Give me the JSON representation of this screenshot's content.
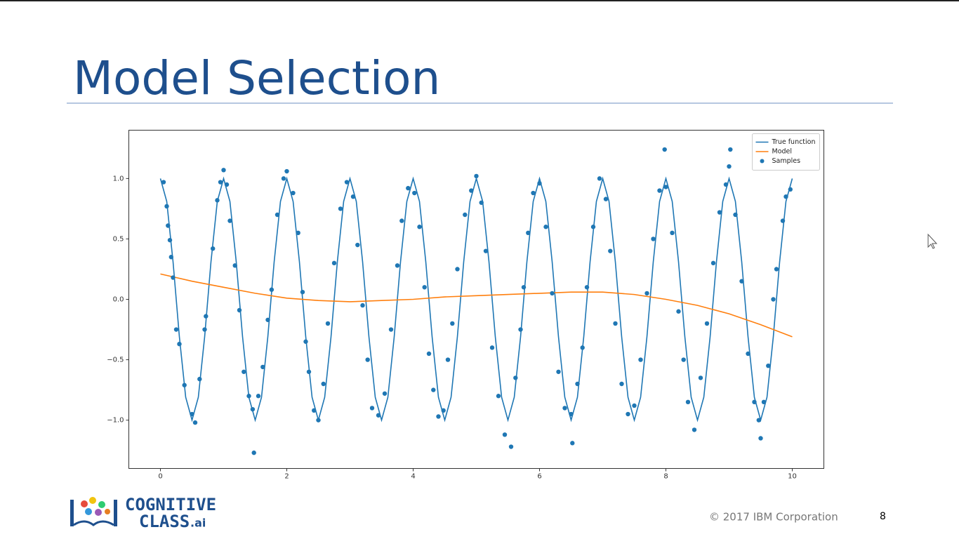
{
  "slide": {
    "title": "Model Selection",
    "copyright": "© 2017 IBM Corporation",
    "page": "8",
    "logo": {
      "line1": "COGNITIVE",
      "line2": "CLASS",
      "suffix": ".ai"
    }
  },
  "chart_data": {
    "type": "line",
    "xlim": [
      -0.5,
      10.5
    ],
    "ylim": [
      -1.4,
      1.4
    ],
    "xticks": [
      0,
      2,
      4,
      6,
      8,
      10
    ],
    "yticks": [
      {
        "value": -1,
        "label": "−1.0"
      },
      {
        "value": -0.5,
        "label": "−0.5"
      },
      {
        "value": 0,
        "label": "0.0"
      },
      {
        "value": 0.5,
        "label": "0.5"
      },
      {
        "value": 1,
        "label": "1.0"
      }
    ],
    "legend": "upper right",
    "series": [
      {
        "name": "True function",
        "type": "line",
        "color": "#1f77b4",
        "x": [
          0,
          0.1,
          0.2,
          0.3,
          0.4,
          0.5,
          0.6,
          0.7,
          0.8,
          0.9,
          1,
          1.1,
          1.2,
          1.3,
          1.4,
          1.5,
          1.6,
          1.7,
          1.8,
          1.9,
          2,
          2.1,
          2.2,
          2.3,
          2.4,
          2.5,
          2.6,
          2.7,
          2.8,
          2.9,
          3,
          3.1,
          3.2,
          3.3,
          3.4,
          3.5,
          3.6,
          3.7,
          3.8,
          3.9,
          4,
          4.1,
          4.2,
          4.3,
          4.4,
          4.5,
          4.6,
          4.7,
          4.8,
          4.9,
          5,
          5.1,
          5.2,
          5.3,
          5.4,
          5.5,
          5.6,
          5.7,
          5.8,
          5.9,
          6,
          6.1,
          6.2,
          6.3,
          6.4,
          6.5,
          6.6,
          6.7,
          6.8,
          6.9,
          7,
          7.1,
          7.2,
          7.3,
          7.4,
          7.5,
          7.6,
          7.7,
          7.8,
          7.9,
          8,
          8.1,
          8.2,
          8.3,
          8.4,
          8.5,
          8.6,
          8.7,
          8.8,
          8.9,
          9,
          9.1,
          9.2,
          9.3,
          9.4,
          9.5,
          9.6,
          9.7,
          9.8,
          9.9,
          10
        ],
        "values": [
          1,
          0.81,
          0.31,
          -0.31,
          -0.81,
          -1,
          -0.81,
          -0.31,
          0.31,
          0.81,
          1,
          0.81,
          0.31,
          -0.31,
          -0.81,
          -1,
          -0.81,
          -0.31,
          0.31,
          0.81,
          1,
          0.81,
          0.31,
          -0.31,
          -0.81,
          -1,
          -0.81,
          -0.31,
          0.31,
          0.81,
          1,
          0.81,
          0.31,
          -0.31,
          -0.81,
          -1,
          -0.81,
          -0.31,
          0.31,
          0.81,
          1,
          0.81,
          0.31,
          -0.31,
          -0.81,
          -1,
          -0.81,
          -0.31,
          0.31,
          0.81,
          1,
          0.81,
          0.31,
          -0.31,
          -0.81,
          -1,
          -0.81,
          -0.31,
          0.31,
          0.81,
          1,
          0.81,
          0.31,
          -0.31,
          -0.81,
          -1,
          -0.81,
          -0.31,
          0.31,
          0.81,
          1,
          0.81,
          0.31,
          -0.31,
          -0.81,
          -1,
          -0.81,
          -0.31,
          0.31,
          0.81,
          1,
          0.81,
          0.31,
          -0.31,
          -0.81,
          -1,
          -0.81,
          -0.31,
          0.31,
          0.81,
          1,
          0.81,
          0.31,
          -0.31,
          -0.81,
          -1,
          -0.81,
          -0.31,
          0.31,
          0.81,
          1
        ]
      },
      {
        "name": "Model",
        "type": "line",
        "color": "#ff7f0e",
        "x": [
          0,
          0.5,
          1,
          1.5,
          2,
          2.5,
          3,
          3.5,
          4,
          4.5,
          5,
          5.5,
          6,
          6.5,
          7,
          7.5,
          8,
          8.5,
          9,
          9.5,
          10
        ],
        "values": [
          0.21,
          0.15,
          0.1,
          0.05,
          0.01,
          -0.01,
          -0.02,
          -0.01,
          0,
          0.02,
          0.03,
          0.04,
          0.05,
          0.06,
          0.06,
          0.04,
          0,
          -0.05,
          -0.12,
          -0.21,
          -0.31
        ]
      },
      {
        "name": "Samples",
        "type": "scatter",
        "color": "#1f77b4",
        "x": [
          0.05,
          0.1,
          0.12,
          0.15,
          0.17,
          0.2,
          0.25,
          0.3,
          0.38,
          0.5,
          0.55,
          0.62,
          0.7,
          0.72,
          0.83,
          0.9,
          0.95,
          1,
          1.05,
          1.1,
          1.18,
          1.25,
          1.32,
          1.4,
          1.46,
          1.48,
          1.55,
          1.62,
          1.7,
          1.76,
          1.85,
          1.95,
          2,
          2.1,
          2.18,
          2.25,
          2.3,
          2.35,
          2.43,
          2.5,
          2.58,
          2.65,
          2.75,
          2.85,
          2.95,
          3.05,
          3.12,
          3.2,
          3.28,
          3.35,
          3.45,
          3.55,
          3.65,
          3.75,
          3.82,
          3.92,
          4.02,
          4.1,
          4.18,
          4.25,
          4.32,
          4.4,
          4.48,
          4.55,
          4.62,
          4.7,
          4.82,
          4.92,
          5,
          5.08,
          5.15,
          5.25,
          5.35,
          5.45,
          5.55,
          5.62,
          5.7,
          5.75,
          5.82,
          5.9,
          6,
          6.1,
          6.2,
          6.3,
          6.4,
          6.5,
          6.52,
          6.6,
          6.68,
          6.75,
          6.85,
          6.95,
          7.05,
          7.12,
          7.2,
          7.3,
          7.4,
          7.5,
          7.6,
          7.7,
          7.8,
          7.9,
          7.98,
          8,
          8.1,
          8.2,
          8.28,
          8.35,
          8.45,
          8.55,
          8.65,
          8.75,
          8.85,
          8.95,
          9,
          9.02,
          9.1,
          9.2,
          9.3,
          9.4,
          9.47,
          9.5,
          9.55,
          9.62,
          9.7,
          9.75,
          9.85,
          9.9,
          9.97
        ],
        "values": [
          0.97,
          0.77,
          0.61,
          0.49,
          0.35,
          0.18,
          -0.25,
          -0.37,
          -0.71,
          -0.95,
          -1.02,
          -0.66,
          -0.25,
          -0.14,
          0.42,
          0.82,
          0.97,
          1.07,
          0.95,
          0.65,
          0.28,
          -0.09,
          -0.6,
          -0.8,
          -0.91,
          -1.27,
          -0.8,
          -0.56,
          -0.17,
          0.08,
          0.7,
          1,
          1.06,
          0.88,
          0.55,
          0.06,
          -0.35,
          -0.6,
          -0.92,
          -1,
          -0.7,
          -0.2,
          0.3,
          0.75,
          0.97,
          0.85,
          0.45,
          -0.05,
          -0.5,
          -0.9,
          -0.96,
          -0.78,
          -0.25,
          0.28,
          0.65,
          0.92,
          0.88,
          0.6,
          0.1,
          -0.45,
          -0.75,
          -0.97,
          -0.92,
          -0.5,
          -0.2,
          0.25,
          0.7,
          0.9,
          1.02,
          0.8,
          0.4,
          -0.4,
          -0.8,
          -1.12,
          -1.22,
          -0.65,
          -0.25,
          0.1,
          0.55,
          0.88,
          0.96,
          0.6,
          0.05,
          -0.6,
          -0.9,
          -0.95,
          -1.19,
          -0.7,
          -0.4,
          0.1,
          0.6,
          1,
          0.83,
          0.4,
          -0.2,
          -0.7,
          -0.95,
          -0.88,
          -0.5,
          0.05,
          0.5,
          0.9,
          1.24,
          0.93,
          0.55,
          -0.1,
          -0.5,
          -0.85,
          -1.08,
          -0.65,
          -0.2,
          0.3,
          0.72,
          0.95,
          1.1,
          1.24,
          0.7,
          0.15,
          -0.45,
          -0.85,
          -1,
          -1.15,
          -0.85,
          -0.55,
          0,
          0.25,
          0.65,
          0.85,
          0.91
        ]
      }
    ]
  }
}
